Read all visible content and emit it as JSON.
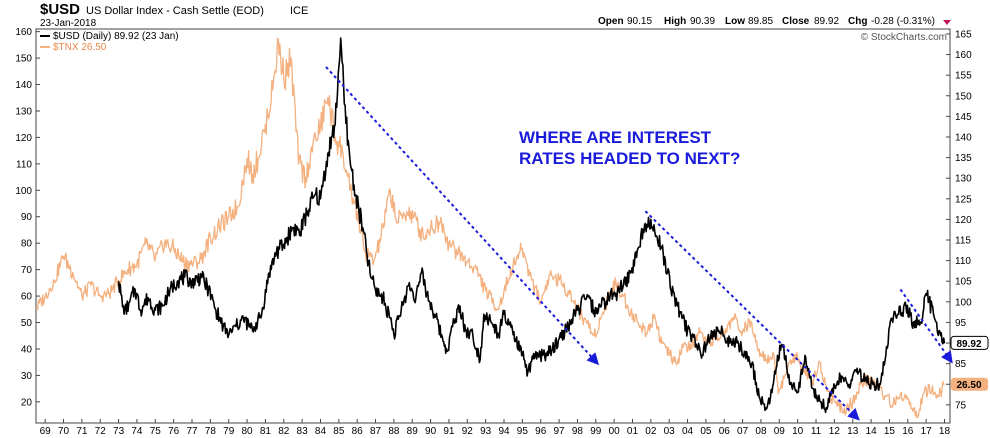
{
  "header": {
    "symbol": "$USD",
    "name": "US Dollar Index - Cash Settle (EOD)",
    "exchange": "ICE",
    "date": "23-Jan-2018",
    "open_label": "Open",
    "open": "90.15",
    "high_label": "High",
    "high": "90.39",
    "low_label": "Low",
    "low": "89.85",
    "close_label": "Close",
    "close": "89.92",
    "chg_label": "Chg",
    "chg": "-0.28 (-0.31%)"
  },
  "watermark": "© StockCharts.com",
  "chart_data": {
    "type": "line",
    "annotation": [
      "WHERE ARE INTEREST",
      "RATES HEADED TO NEXT?"
    ],
    "x_ticks": [
      "69",
      "70",
      "71",
      "72",
      "73",
      "74",
      "75",
      "76",
      "77",
      "78",
      "79",
      "80",
      "81",
      "82",
      "83",
      "84",
      "85",
      "86",
      "87",
      "88",
      "89",
      "90",
      "91",
      "92",
      "93",
      "94",
      "95",
      "96",
      "97",
      "98",
      "99",
      "00",
      "01",
      "02",
      "03",
      "04",
      "05",
      "06",
      "07",
      "08",
      "09",
      "10",
      "11",
      "12",
      "13",
      "14",
      "15",
      "16",
      "17",
      "18"
    ],
    "x_range": [
      1968.5,
      2018.3
    ],
    "left_axis": {
      "ticks": [
        20,
        30,
        40,
        50,
        60,
        70,
        80,
        90,
        100,
        110,
        120,
        130,
        140,
        150,
        160
      ],
      "range": [
        12,
        161
      ]
    },
    "right_axis": {
      "ticks": [
        75,
        80,
        85,
        90,
        95,
        100,
        105,
        110,
        115,
        120,
        125,
        130,
        135,
        140,
        145,
        150,
        155,
        160,
        165
      ],
      "range": [
        70.6,
        166.2
      ]
    },
    "grid": false,
    "legend_placement": "top-left",
    "series": [
      {
        "name": "$USD (Daily) 89.92 (23 Jan)",
        "axis": "right",
        "color": "#000000",
        "last_label": "89.92",
        "points": [
          [
            1973.0,
            105
          ],
          [
            1973.3,
            97
          ],
          [
            1973.6,
            100
          ],
          [
            1973.9,
            103
          ],
          [
            1974.2,
            98
          ],
          [
            1974.6,
            101
          ],
          [
            1975.0,
            98
          ],
          [
            1975.4,
            99
          ],
          [
            1975.8,
            103
          ],
          [
            1976.2,
            105
          ],
          [
            1976.6,
            106
          ],
          [
            1977.0,
            105
          ],
          [
            1977.5,
            106
          ],
          [
            1977.9,
            103
          ],
          [
            1978.3,
            98
          ],
          [
            1978.7,
            94
          ],
          [
            1979.0,
            92
          ],
          [
            1979.4,
            94
          ],
          [
            1979.8,
            96
          ],
          [
            1980.3,
            93
          ],
          [
            1980.8,
            97
          ],
          [
            1981.2,
            107
          ],
          [
            1981.6,
            112
          ],
          [
            1982.0,
            114
          ],
          [
            1982.5,
            118
          ],
          [
            1982.9,
            117
          ],
          [
            1983.3,
            122
          ],
          [
            1983.7,
            126
          ],
          [
            1984.0,
            125
          ],
          [
            1984.4,
            136
          ],
          [
            1984.8,
            143
          ],
          [
            1985.1,
            164
          ],
          [
            1985.3,
            148
          ],
          [
            1985.6,
            135
          ],
          [
            1985.9,
            126
          ],
          [
            1986.3,
            118
          ],
          [
            1986.7,
            107
          ],
          [
            1987.0,
            103
          ],
          [
            1987.4,
            101
          ],
          [
            1987.8,
            96
          ],
          [
            1988.0,
            92
          ],
          [
            1988.4,
            98
          ],
          [
            1988.8,
            104
          ],
          [
            1989.2,
            101
          ],
          [
            1989.5,
            107
          ],
          [
            1989.8,
            102
          ],
          [
            1990.2,
            97
          ],
          [
            1990.6,
            92
          ],
          [
            1990.9,
            88
          ],
          [
            1991.2,
            94
          ],
          [
            1991.6,
            99
          ],
          [
            1991.9,
            93
          ],
          [
            1992.3,
            92
          ],
          [
            1992.7,
            86
          ],
          [
            1992.9,
            97
          ],
          [
            1993.3,
            95
          ],
          [
            1993.7,
            92
          ],
          [
            1994.0,
            97
          ],
          [
            1994.5,
            92
          ],
          [
            1995.0,
            87
          ],
          [
            1995.3,
            83
          ],
          [
            1995.7,
            87
          ],
          [
            1996.1,
            87
          ],
          [
            1996.6,
            88
          ],
          [
            1997.0,
            91
          ],
          [
            1997.5,
            94
          ],
          [
            1998.0,
            98
          ],
          [
            1998.5,
            101
          ],
          [
            1998.9,
            98
          ],
          [
            1999.3,
            99
          ],
          [
            1999.7,
            101
          ],
          [
            2000.1,
            102
          ],
          [
            2000.5,
            104
          ],
          [
            2000.9,
            107
          ],
          [
            2001.3,
            113
          ],
          [
            2001.7,
            119
          ],
          [
            2002.0,
            120
          ],
          [
            2002.3,
            116
          ],
          [
            2002.6,
            113
          ],
          [
            2002.9,
            107
          ],
          [
            2003.3,
            101
          ],
          [
            2003.7,
            96
          ],
          [
            2004.0,
            93
          ],
          [
            2004.4,
            91
          ],
          [
            2004.8,
            87
          ],
          [
            2005.1,
            91
          ],
          [
            2005.5,
            92
          ],
          [
            2005.9,
            93
          ],
          [
            2006.3,
            90
          ],
          [
            2006.7,
            90
          ],
          [
            2007.1,
            88
          ],
          [
            2007.5,
            85
          ],
          [
            2007.9,
            77
          ],
          [
            2008.3,
            74
          ],
          [
            2008.6,
            78
          ],
          [
            2008.9,
            87
          ],
          [
            2009.2,
            89
          ],
          [
            2009.6,
            80
          ],
          [
            2010.0,
            78
          ],
          [
            2010.4,
            87
          ],
          [
            2010.8,
            79
          ],
          [
            2011.2,
            76
          ],
          [
            2011.6,
            74
          ],
          [
            2011.9,
            79
          ],
          [
            2012.4,
            82
          ],
          [
            2012.8,
            80
          ],
          [
            2013.2,
            83
          ],
          [
            2013.7,
            81
          ],
          [
            2014.1,
            80
          ],
          [
            2014.5,
            80
          ],
          [
            2014.8,
            87
          ],
          [
            2015.1,
            96
          ],
          [
            2015.5,
            97
          ],
          [
            2015.9,
            99
          ],
          [
            2016.3,
            95
          ],
          [
            2016.8,
            96
          ],
          [
            2016.9,
            101
          ],
          [
            2017.0,
            102
          ],
          [
            2017.4,
            97
          ],
          [
            2017.7,
            93
          ],
          [
            2018.0,
            89.92
          ]
        ]
      },
      {
        "name": "$TNX 26.50",
        "axis": "left",
        "color": "#f4b07e",
        "last_label": "26.50",
        "points": [
          [
            1968.5,
            55
          ],
          [
            1969.0,
            60
          ],
          [
            1969.5,
            66
          ],
          [
            1970.0,
            75
          ],
          [
            1970.5,
            69
          ],
          [
            1971.0,
            60
          ],
          [
            1971.5,
            64
          ],
          [
            1972.0,
            60
          ],
          [
            1972.5,
            61
          ],
          [
            1973.0,
            66
          ],
          [
            1973.5,
            70
          ],
          [
            1974.0,
            72
          ],
          [
            1974.5,
            80
          ],
          [
            1975.0,
            74
          ],
          [
            1975.5,
            80
          ],
          [
            1976.0,
            78
          ],
          [
            1976.5,
            73
          ],
          [
            1977.0,
            72
          ],
          [
            1977.5,
            74
          ],
          [
            1978.0,
            82
          ],
          [
            1978.5,
            86
          ],
          [
            1979.0,
            90
          ],
          [
            1979.5,
            94
          ],
          [
            1980.0,
            112
          ],
          [
            1980.3,
            106
          ],
          [
            1980.6,
            112
          ],
          [
            1981.0,
            125
          ],
          [
            1981.4,
            138
          ],
          [
            1981.7,
            157
          ],
          [
            1982.0,
            142
          ],
          [
            1982.4,
            150
          ],
          [
            1982.8,
            110
          ],
          [
            1983.2,
            105
          ],
          [
            1983.6,
            118
          ],
          [
            1984.0,
            124
          ],
          [
            1984.4,
            135
          ],
          [
            1984.8,
            120
          ],
          [
            1985.2,
            115
          ],
          [
            1985.6,
            100
          ],
          [
            1986.0,
            92
          ],
          [
            1986.4,
            77
          ],
          [
            1986.9,
            73
          ],
          [
            1987.3,
            82
          ],
          [
            1987.8,
            100
          ],
          [
            1988.2,
            88
          ],
          [
            1988.7,
            92
          ],
          [
            1989.1,
            90
          ],
          [
            1989.6,
            82
          ],
          [
            1990.0,
            86
          ],
          [
            1990.6,
            88
          ],
          [
            1991.0,
            80
          ],
          [
            1991.5,
            76
          ],
          [
            1992.0,
            73
          ],
          [
            1992.5,
            70
          ],
          [
            1993.0,
            62
          ],
          [
            1993.7,
            55
          ],
          [
            1994.0,
            62
          ],
          [
            1994.5,
            72
          ],
          [
            1995.0,
            78
          ],
          [
            1995.5,
            66
          ],
          [
            1996.0,
            58
          ],
          [
            1996.5,
            68
          ],
          [
            1997.0,
            66
          ],
          [
            1997.5,
            62
          ],
          [
            1998.0,
            55
          ],
          [
            1998.5,
            50
          ],
          [
            1998.9,
            45
          ],
          [
            1999.3,
            52
          ],
          [
            1999.7,
            60
          ],
          [
            2000.1,
            65
          ],
          [
            2000.5,
            60
          ],
          [
            2000.9,
            54
          ],
          [
            2001.3,
            50
          ],
          [
            2001.8,
            46
          ],
          [
            2002.2,
            53
          ],
          [
            2002.6,
            42
          ],
          [
            2003.0,
            38
          ],
          [
            2003.4,
            34
          ],
          [
            2003.8,
            42
          ],
          [
            2004.2,
            40
          ],
          [
            2004.6,
            46
          ],
          [
            2005.0,
            42
          ],
          [
            2005.5,
            44
          ],
          [
            2006.0,
            46
          ],
          [
            2006.5,
            52
          ],
          [
            2007.0,
            47
          ],
          [
            2007.5,
            50
          ],
          [
            2007.9,
            40
          ],
          [
            2008.3,
            36
          ],
          [
            2008.7,
            38
          ],
          [
            2008.95,
            23
          ],
          [
            2009.3,
            30
          ],
          [
            2009.7,
            36
          ],
          [
            2010.0,
            37
          ],
          [
            2010.4,
            32
          ],
          [
            2010.8,
            28
          ],
          [
            2011.2,
            35
          ],
          [
            2011.6,
            24
          ],
          [
            2012.0,
            20
          ],
          [
            2012.5,
            16
          ],
          [
            2013.0,
            20
          ],
          [
            2013.5,
            27
          ],
          [
            2013.9,
            29
          ],
          [
            2014.3,
            26
          ],
          [
            2014.8,
            22
          ],
          [
            2015.2,
            19
          ],
          [
            2015.6,
            23
          ],
          [
            2016.0,
            21
          ],
          [
            2016.5,
            14
          ],
          [
            2016.9,
            24
          ],
          [
            2017.3,
            24
          ],
          [
            2017.7,
            22
          ],
          [
            2018.0,
            26.5
          ]
        ]
      }
    ],
    "trendlines": [
      {
        "axis": "right",
        "from": [
          1984.3,
          157
        ],
        "to": [
          1999.0,
          85.5
        ]
      },
      {
        "axis": "right",
        "from": [
          2001.7,
          122
        ],
        "to": [
          2013.2,
          72
        ]
      },
      {
        "axis": "right",
        "from": [
          2015.6,
          103
        ],
        "to": [
          2018.3,
          86
        ]
      }
    ]
  }
}
